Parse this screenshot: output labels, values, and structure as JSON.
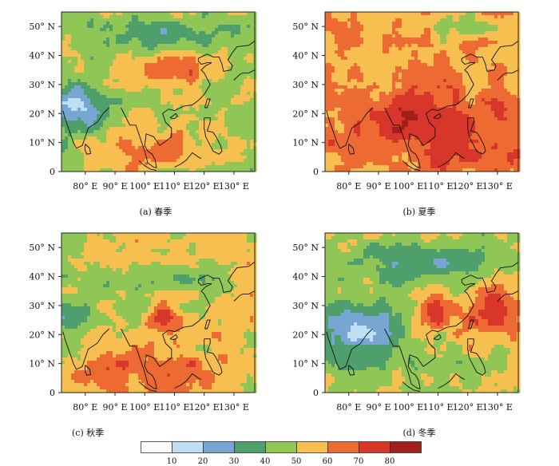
{
  "palette": [
    "#ffffff",
    "#bfe0f2",
    "#77a6d3",
    "#4e9f6c",
    "#8fc655",
    "#f6bf4f",
    "#ee6a33",
    "#d8362b",
    "#a2201c"
  ],
  "legend": {
    "labels": [
      "10",
      "20",
      "30",
      "40",
      "50",
      "60",
      "70",
      "80"
    ]
  },
  "axes": {
    "lat_ticks": [
      "0",
      "10° N",
      "20° N",
      "30° N",
      "40° N",
      "50° N"
    ],
    "lon_ticks": [
      "80° E",
      "90° E",
      "100° E",
      "110° E",
      "120° E",
      "130° E"
    ],
    "lon_range": [
      72,
      137
    ],
    "lat_range": [
      0,
      55
    ]
  },
  "panels": [
    {
      "key": "a",
      "caption": "(a) 春季",
      "base_level": 4
    },
    {
      "key": "b",
      "caption": "(b) 夏季",
      "base_level": 5
    },
    {
      "key": "c",
      "caption": "(c) 秋季",
      "base_level": 5
    },
    {
      "key": "d",
      "caption": "(d) 冬季",
      "base_level": 4
    }
  ]
}
